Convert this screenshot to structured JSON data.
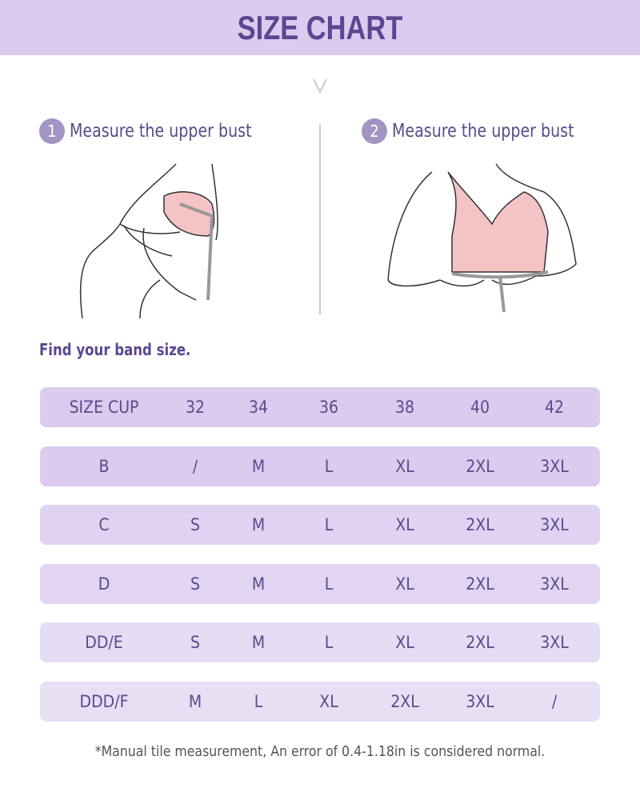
{
  "title": "SIZE CHART",
  "steps": [
    {
      "number": "1",
      "label": "Measure the upper bust"
    },
    {
      "number": "2",
      "label": "Measure the upper bust"
    }
  ],
  "band_title": "Find your band size.",
  "table": {
    "header": [
      "SIZE CUP",
      "32",
      "34",
      "36",
      "38",
      "40",
      "42"
    ],
    "rows": [
      [
        "B",
        "/",
        "M",
        "L",
        "XL",
        "2XL",
        "3XL"
      ],
      [
        "C",
        "S",
        "M",
        "L",
        "XL",
        "2XL",
        "3XL"
      ],
      [
        "D",
        "S",
        "M",
        "L",
        "XL",
        "2XL",
        "3XL"
      ],
      [
        "DD/E",
        "S",
        "M",
        "L",
        "XL",
        "2XL",
        "3XL"
      ],
      [
        "DDD/F",
        "M",
        "L",
        "XL",
        "2XL",
        "3XL",
        "/"
      ]
    ]
  },
  "note": "*Manual tile measurement, An error of 0.4-1.18in is considered normal.",
  "colors": {
    "banner": "#dccbef",
    "text": "#5b4a8b",
    "row": "#dccbef",
    "row_light": "#e6dcf3",
    "bra": "#f4c3c6"
  },
  "icons": [
    "chevron-down-icon"
  ]
}
